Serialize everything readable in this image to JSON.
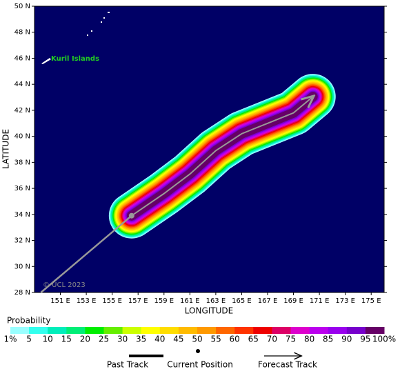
{
  "chart_data": {
    "type": "map",
    "xlabel": "LONGITUDE",
    "ylabel": "LATITUDE",
    "xlim": [
      149,
      176
    ],
    "ylim": [
      28,
      50
    ],
    "xticks": [
      {
        "value": 151,
        "label": "151 E"
      },
      {
        "value": 153,
        "label": "153 E"
      },
      {
        "value": 155,
        "label": "155 E"
      },
      {
        "value": 157,
        "label": "157 E"
      },
      {
        "value": 159,
        "label": "159 E"
      },
      {
        "value": 161,
        "label": "161 E"
      },
      {
        "value": 163,
        "label": "163 E"
      },
      {
        "value": 165,
        "label": "165 E"
      },
      {
        "value": 167,
        "label": "167 E"
      },
      {
        "value": 169,
        "label": "169 E"
      },
      {
        "value": 171,
        "label": "171 E"
      },
      {
        "value": 173,
        "label": "173 E"
      },
      {
        "value": 175,
        "label": "175 E"
      }
    ],
    "yticks": [
      {
        "value": 28,
        "label": "28 N"
      },
      {
        "value": 30,
        "label": "30 N"
      },
      {
        "value": 32,
        "label": "32 N"
      },
      {
        "value": 34,
        "label": "34 N"
      },
      {
        "value": 36,
        "label": "36 N"
      },
      {
        "value": 38,
        "label": "38 N"
      },
      {
        "value": 40,
        "label": "40 N"
      },
      {
        "value": 42,
        "label": "42 N"
      },
      {
        "value": 44,
        "label": "44 N"
      },
      {
        "value": 46,
        "label": "46 N"
      },
      {
        "value": 48,
        "label": "48 N"
      },
      {
        "value": 50,
        "label": "50 N"
      }
    ],
    "place_label": "Kuril Islands",
    "copyright": "© UCL 2023",
    "past_track": {
      "lon": [
        149.5,
        156.5
      ],
      "lat": [
        28,
        33.9
      ]
    },
    "current_position": {
      "lon": 156.5,
      "lat": 33.9
    },
    "forecast_track": {
      "lon": [
        156.5,
        159,
        161,
        163,
        165,
        167,
        169,
        170.5
      ],
      "lat": [
        33.9,
        35.6,
        37.1,
        38.9,
        40.2,
        41.0,
        41.8,
        43.05
      ]
    },
    "colorbar": {
      "title": "Probability",
      "labels": [
        "1%",
        5,
        10,
        15,
        20,
        25,
        30,
        35,
        40,
        45,
        50,
        55,
        60,
        65,
        70,
        75,
        80,
        85,
        90,
        95,
        "100%"
      ],
      "colors": [
        "#99ffff",
        "#33ffee",
        "#00eebb",
        "#00ee77",
        "#00ee00",
        "#66ee00",
        "#ccff00",
        "#ffff00",
        "#ffdd00",
        "#ffbb00",
        "#ff9900",
        "#ff6600",
        "#ff3300",
        "#ee0000",
        "#dd0066",
        "#dd00cc",
        "#bb00ee",
        "#9900ee",
        "#7700cc",
        "#660066"
      ]
    },
    "legend": [
      "Past Track",
      "Current Position",
      "Forecast Track"
    ]
  }
}
